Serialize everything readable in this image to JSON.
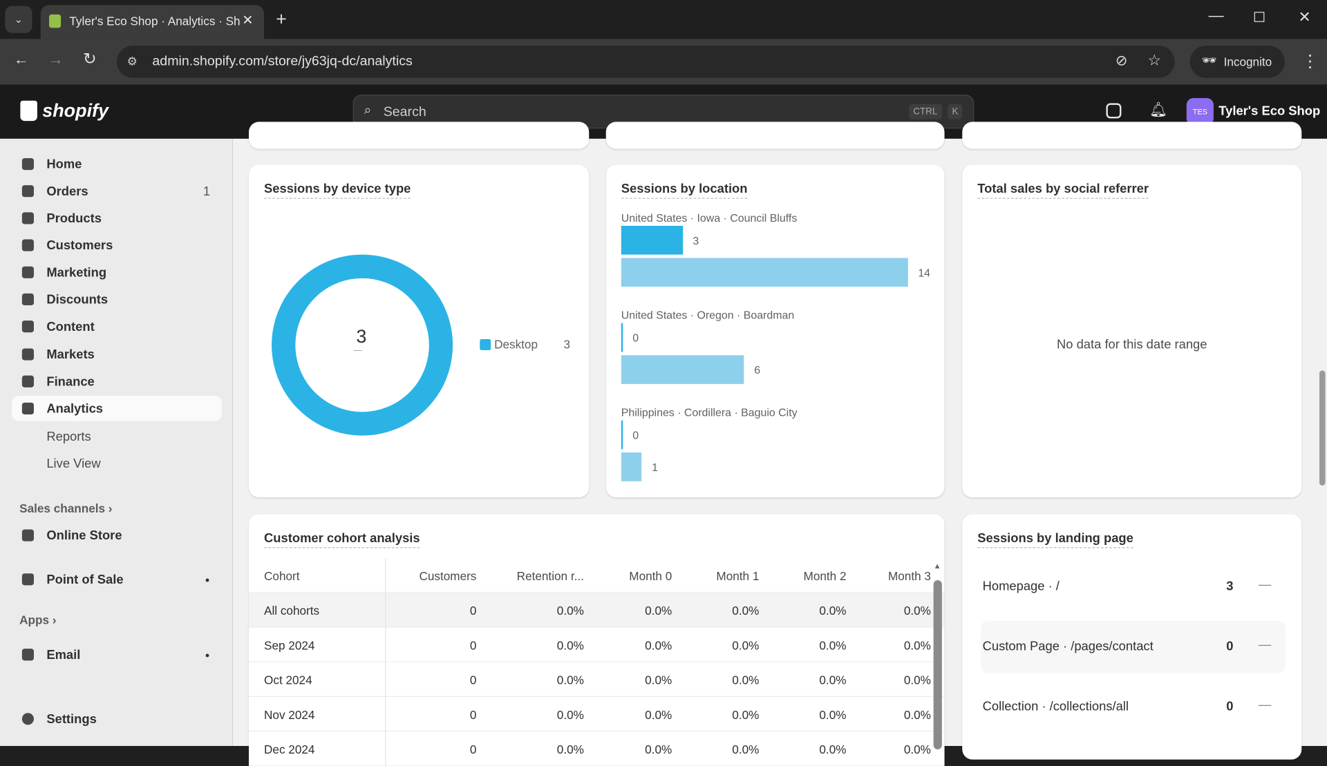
{
  "browser": {
    "tab_title": "Tyler's Eco Shop · Analytics · Sh",
    "url": "admin.shopify.com/store/jy63jq-dc/analytics",
    "incognito_label": "Incognito"
  },
  "topbar": {
    "logo": "shopify",
    "search_placeholder": "Search",
    "kbd_ctrl": "CTRL",
    "kbd_k": "K",
    "store_initials": "TES",
    "store_name": "Tyler's Eco Shop"
  },
  "sidebar": {
    "items": [
      {
        "label": "Home"
      },
      {
        "label": "Orders",
        "badge": "1"
      },
      {
        "label": "Products"
      },
      {
        "label": "Customers"
      },
      {
        "label": "Marketing"
      },
      {
        "label": "Discounts"
      },
      {
        "label": "Content"
      },
      {
        "label": "Markets"
      },
      {
        "label": "Finance"
      },
      {
        "label": "Analytics"
      }
    ],
    "analytics_sub": [
      "Reports",
      "Live View"
    ],
    "sales_channels_label": "Sales channels",
    "channels": [
      {
        "label": "Online Store"
      },
      {
        "label": "Point of Sale"
      }
    ],
    "apps_label": "Apps",
    "apps": [
      {
        "label": "Email"
      }
    ],
    "settings_label": "Settings"
  },
  "device_card": {
    "title": "Sessions by device type",
    "total": "3",
    "total_sub": "—",
    "legend": [
      {
        "label": "Desktop",
        "value": "3",
        "color": "#2bb3e6"
      }
    ]
  },
  "location_card": {
    "title": "Sessions by location",
    "colors": {
      "current": "#2bb3e6",
      "previous": "#8dd0ec"
    },
    "locations": [
      {
        "label": "United States · Iowa · Council Bluffs",
        "current": 3,
        "previous": 14
      },
      {
        "label": "United States · Oregon · Boardman",
        "current": 0,
        "previous": 6
      },
      {
        "label": "Philippines · Cordillera · Baguio City",
        "current": 0,
        "previous": 1
      }
    ]
  },
  "social_card": {
    "title": "Total sales by social referrer",
    "empty": "No data for this date range"
  },
  "cohort_card": {
    "title": "Customer cohort analysis",
    "columns": [
      "Cohort",
      "Customers",
      "Retention r...",
      "Month 0",
      "Month 1",
      "Month 2",
      "Month 3"
    ],
    "rows": [
      [
        "All cohorts",
        "0",
        "0.0%",
        "0.0%",
        "0.0%",
        "0.0%",
        "0.0%"
      ],
      [
        "Sep 2024",
        "0",
        "0.0%",
        "0.0%",
        "0.0%",
        "0.0%",
        "0.0%"
      ],
      [
        "Oct 2024",
        "0",
        "0.0%",
        "0.0%",
        "0.0%",
        "0.0%",
        "0.0%"
      ],
      [
        "Nov 2024",
        "0",
        "0.0%",
        "0.0%",
        "0.0%",
        "0.0%",
        "0.0%"
      ],
      [
        "Dec 2024",
        "0",
        "0.0%",
        "0.0%",
        "0.0%",
        "0.0%",
        "0.0%"
      ]
    ]
  },
  "landing_card": {
    "title": "Sessions by landing page",
    "rows": [
      {
        "label": "Homepage · /",
        "value": "3",
        "change": "—"
      },
      {
        "label": "Custom Page · /pages/contact",
        "value": "0",
        "change": "—"
      },
      {
        "label": "Collection · /collections/all",
        "value": "0",
        "change": "—"
      }
    ]
  }
}
